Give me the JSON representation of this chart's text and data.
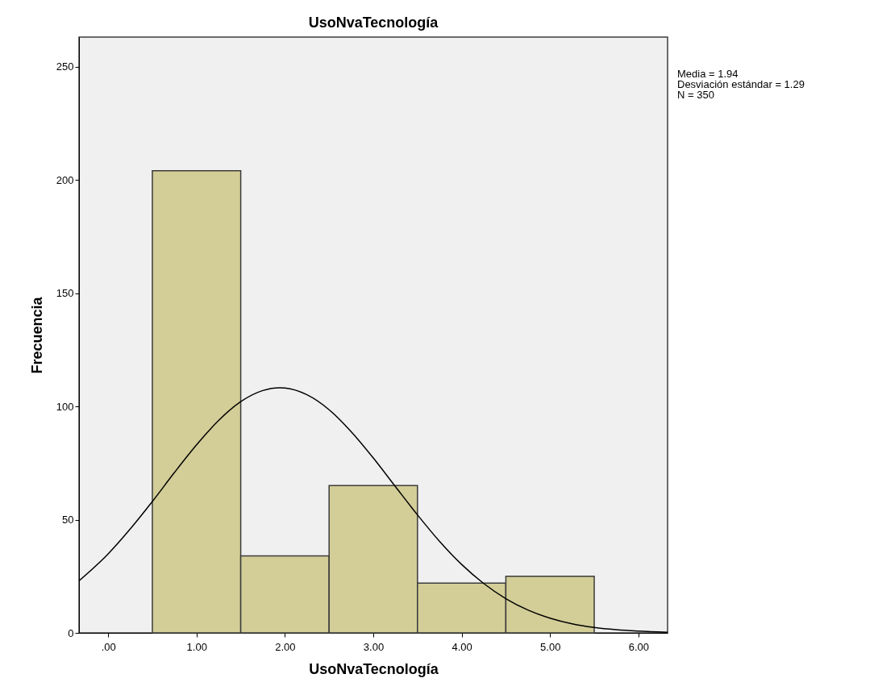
{
  "chart_data": {
    "type": "histogram",
    "title": "UsoNvaTecnología",
    "xlabel": "UsoNvaTecnología",
    "ylabel": "Frecuencia",
    "bins": [
      0.5,
      1.5,
      2.5,
      3.5,
      4.5,
      5.5
    ],
    "values": [
      204,
      34,
      65,
      22,
      25
    ],
    "color": "#d3cd97",
    "series": [
      {
        "type": "line",
        "color": "#000000",
        "x": [
          -0.33,
          0,
          0.25,
          0.5,
          0.75,
          1.0,
          1.25,
          1.5,
          1.75,
          1.94,
          2.0,
          2.25,
          2.5,
          2.75,
          3.0,
          3.25,
          3.5,
          3.75,
          4.0,
          4.25,
          4.5,
          4.75,
          5.0,
          5.25,
          5.5,
          5.75,
          6.0,
          6.33
        ],
        "values": [
          23.0,
          34.9,
          45.9,
          58.0,
          70.8,
          83.0,
          93.8,
          102.1,
          107.0,
          108.2,
          108.1,
          105.1,
          98.5,
          88.8,
          77.2,
          64.6,
          52.1,
          40.4,
          30.2,
          21.8,
          15.1,
          10.1,
          6.5,
          4.0,
          2.4,
          1.4,
          0.8,
          0.3
        ]
      }
    ],
    "xlim": [
      -0.33,
      6.33
    ],
    "xticks": [
      {
        "value": 0,
        "label": ".00"
      },
      {
        "value": 1,
        "label": "1.00"
      },
      {
        "value": 2,
        "label": "2.00"
      },
      {
        "value": 3,
        "label": "3.00"
      },
      {
        "value": 4,
        "label": "4.00"
      },
      {
        "value": 5,
        "label": "5.00"
      },
      {
        "value": 6,
        "label": "6.00"
      }
    ],
    "ylim": [
      0,
      263
    ],
    "yticks": [
      0,
      50,
      100,
      150,
      200,
      250
    ],
    "grid": false,
    "annotations": [
      "Media = 1.94",
      "Desviación estándar = 1.29",
      "N = 350"
    ]
  }
}
